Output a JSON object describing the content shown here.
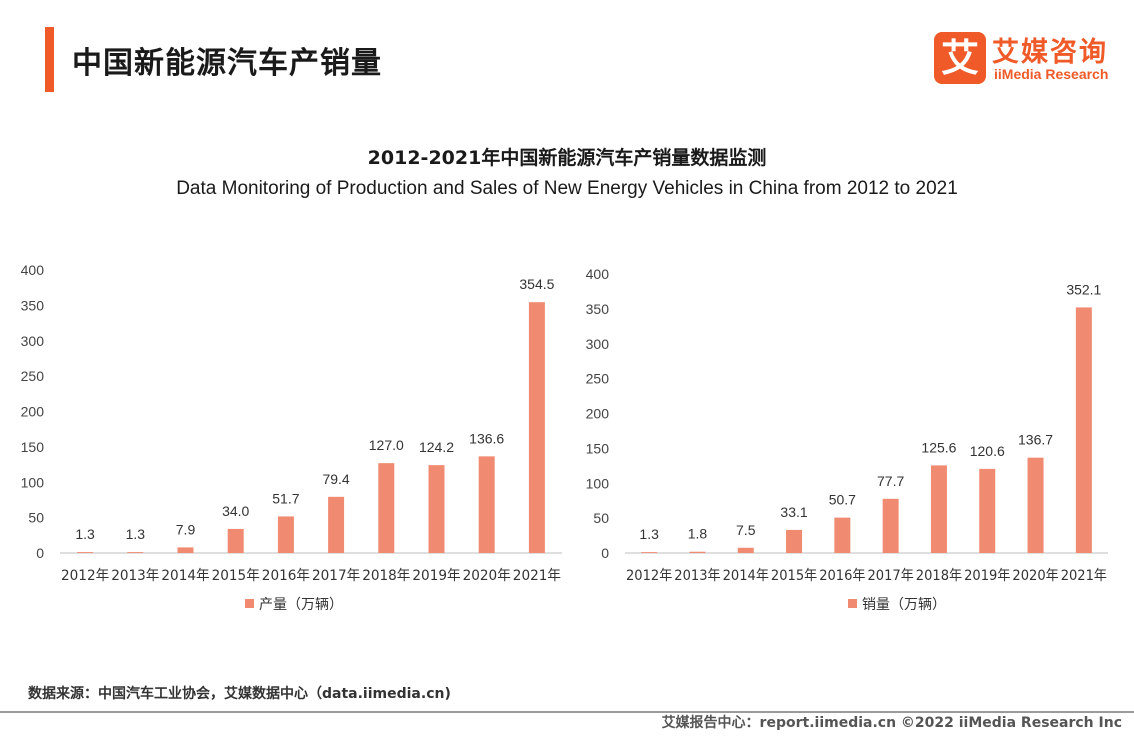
{
  "header": {
    "title": "中国新能源汽车产销量",
    "logo_mark": "艾",
    "logo_cn": "艾媒咨询",
    "logo_en": "iiMedia Research"
  },
  "titles": {
    "title_cn": "2012-2021年中国新能源汽车产销量数据监测",
    "title_en": "Data Monitoring of Production and Sales of New Energy Vehicles in China from 2012 to 2021"
  },
  "colors": {
    "accent": "#ef5a28",
    "bar": "#f08b72",
    "axis": "#bfbfbf"
  },
  "chart_data": [
    {
      "type": "bar",
      "categories": [
        "2012年",
        "2013年",
        "2014年",
        "2015年",
        "2016年",
        "2017年",
        "2018年",
        "2019年",
        "2020年",
        "2021年"
      ],
      "series": [
        {
          "name": "产量（万辆）",
          "values": [
            1.3,
            1.3,
            7.9,
            34.0,
            51.7,
            79.4,
            127.0,
            124.2,
            136.6,
            354.5
          ]
        }
      ],
      "ylim": [
        0,
        400
      ],
      "yticks": [
        0,
        50,
        100,
        150,
        200,
        250,
        300,
        350,
        400
      ],
      "legend_position": "bottom",
      "grid": false
    },
    {
      "type": "bar",
      "categories": [
        "2012年",
        "2013年",
        "2014年",
        "2015年",
        "2016年",
        "2017年",
        "2018年",
        "2019年",
        "2020年",
        "2021年"
      ],
      "series": [
        {
          "name": "销量（万辆）",
          "values": [
            1.3,
            1.8,
            7.5,
            33.1,
            50.7,
            77.7,
            125.6,
            120.6,
            136.7,
            352.1
          ]
        }
      ],
      "ylim": [
        0,
        400
      ],
      "yticks": [
        0,
        50,
        100,
        150,
        200,
        250,
        300,
        350,
        400
      ],
      "legend_position": "bottom",
      "grid": false
    }
  ],
  "footer": {
    "source": "数据来源：中国汽车工业协会，艾媒数据中心（data.iimedia.cn)",
    "credit": "艾媒报告中心：report.iimedia.cn ©2022 iiMedia Research Inc"
  }
}
